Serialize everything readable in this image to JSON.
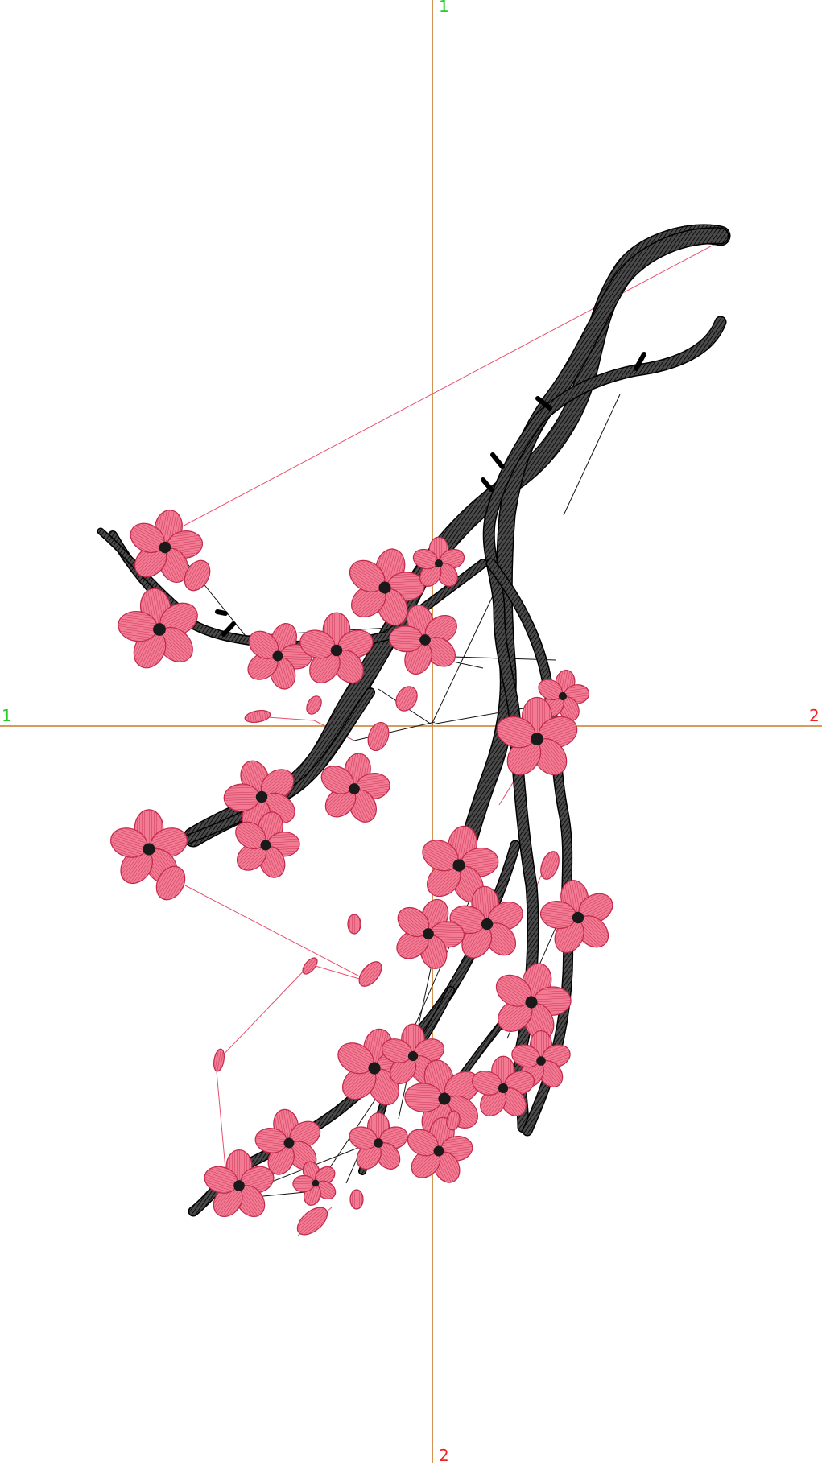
{
  "axis_labels": {
    "vertical_top": "1",
    "horizontal_left": "1",
    "horizontal_right": "2",
    "vertical_bottom": "2"
  },
  "colors": {
    "background": "#ffffff",
    "crosshair": "#c87a28",
    "label_start": "#22cc22",
    "label_end": "#ee2222",
    "branch_fill": "#3c3c3c",
    "branch_stitch": "#000000",
    "petal_fill": "#f27a92",
    "petal_stitch": "#c0284a",
    "flower_center": "#1a1a1a",
    "jump_pink": "#e8506e",
    "jump_black": "#111111"
  },
  "icons": {
    "branch": "embroidery-branch-satin-stitch",
    "blossom": "cherry-blossom-five-petal-icon",
    "bud": "blossom-bud-icon"
  }
}
